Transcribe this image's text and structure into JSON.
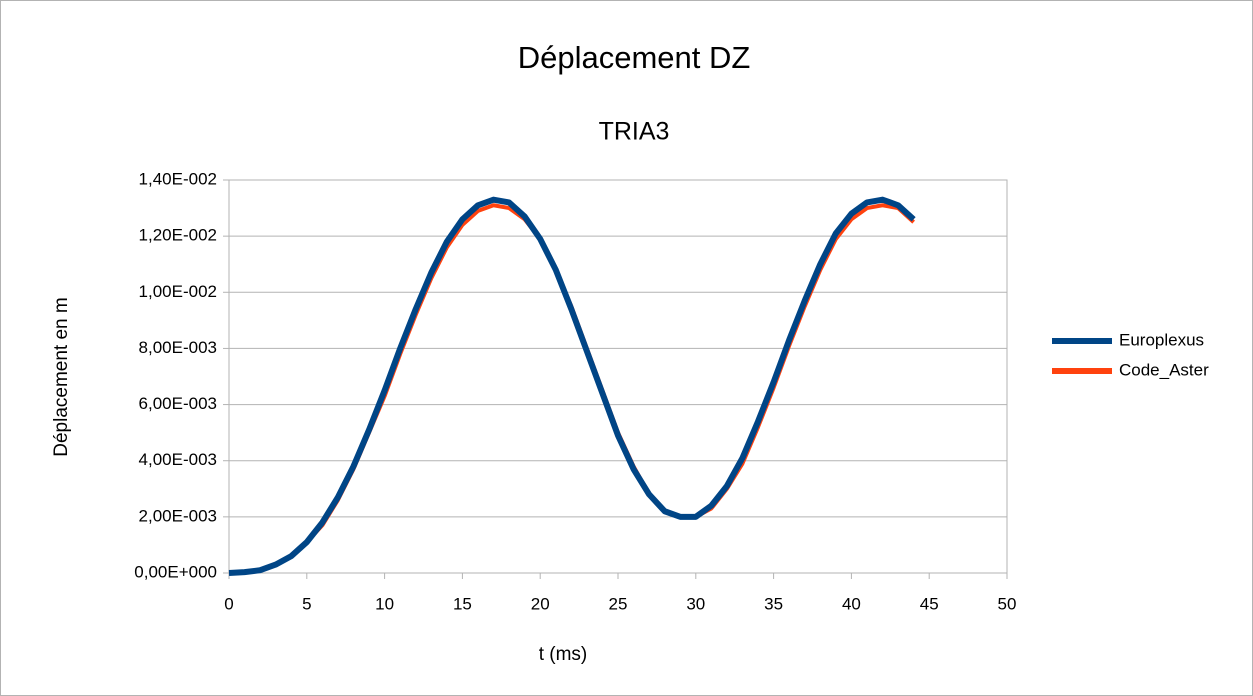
{
  "chart_data": {
    "type": "line",
    "title": "Déplacement DZ",
    "subtitle": "TRIA3",
    "x_label": "t (ms)",
    "y_label": "Déplacement en m",
    "x": [
      0,
      1,
      2,
      3,
      4,
      5,
      6,
      7,
      8,
      9,
      10,
      11,
      12,
      13,
      14,
      15,
      16,
      17,
      18,
      19,
      20,
      21,
      22,
      23,
      24,
      25,
      26,
      27,
      28,
      29,
      30,
      31,
      32,
      33,
      34,
      35,
      36,
      37,
      38,
      39,
      40,
      41,
      42,
      43,
      44
    ],
    "series": [
      {
        "name": "Code_Aster",
        "color": "#ff420e",
        "values": [
          0,
          3e-05,
          0.0001,
          0.0003,
          0.0006,
          0.0011,
          0.0017,
          0.0026,
          0.0037,
          0.005,
          0.0063,
          0.0078,
          0.0092,
          0.0105,
          0.0116,
          0.0124,
          0.0129,
          0.0131,
          0.013,
          0.0126,
          0.0119,
          0.0108,
          0.0095,
          0.008,
          0.0065,
          0.005,
          0.0038,
          0.0028,
          0.0022,
          0.002,
          0.002,
          0.0023,
          0.003,
          0.0039,
          0.0052,
          0.0066,
          0.0081,
          0.0095,
          0.0108,
          0.0119,
          0.0126,
          0.013,
          0.0131,
          0.013,
          0.0125
        ]
      },
      {
        "name": "Europlexus",
        "color": "#004586",
        "values": [
          0,
          3e-05,
          0.0001,
          0.0003,
          0.0006,
          0.0011,
          0.0018,
          0.0027,
          0.0038,
          0.0051,
          0.0065,
          0.008,
          0.0094,
          0.0107,
          0.0118,
          0.0126,
          0.0131,
          0.0133,
          0.0132,
          0.0127,
          0.0119,
          0.0108,
          0.0094,
          0.0079,
          0.0064,
          0.0049,
          0.0037,
          0.0028,
          0.0022,
          0.002,
          0.002,
          0.0024,
          0.0031,
          0.0041,
          0.0054,
          0.0068,
          0.0083,
          0.0097,
          0.011,
          0.0121,
          0.0128,
          0.0132,
          0.0133,
          0.0131,
          0.0126
        ]
      }
    ],
    "xlim": [
      0,
      50
    ],
    "xticks": [
      0,
      5,
      10,
      15,
      20,
      25,
      30,
      35,
      40,
      45,
      50
    ],
    "ylim": [
      0,
      0.014
    ],
    "yticks": [
      {
        "value": 0,
        "label": "0,00E+000"
      },
      {
        "value": 0.002,
        "label": "2,00E-003"
      },
      {
        "value": 0.004,
        "label": "4,00E-003"
      },
      {
        "value": 0.006,
        "label": "6,00E-003"
      },
      {
        "value": 0.008,
        "label": "8,00E-003"
      },
      {
        "value": 0.01,
        "label": "1,00E-002"
      },
      {
        "value": 0.012,
        "label": "1,20E-002"
      },
      {
        "value": 0.014,
        "label": "1,40E-002"
      }
    ],
    "grid": true,
    "legend": "right"
  }
}
